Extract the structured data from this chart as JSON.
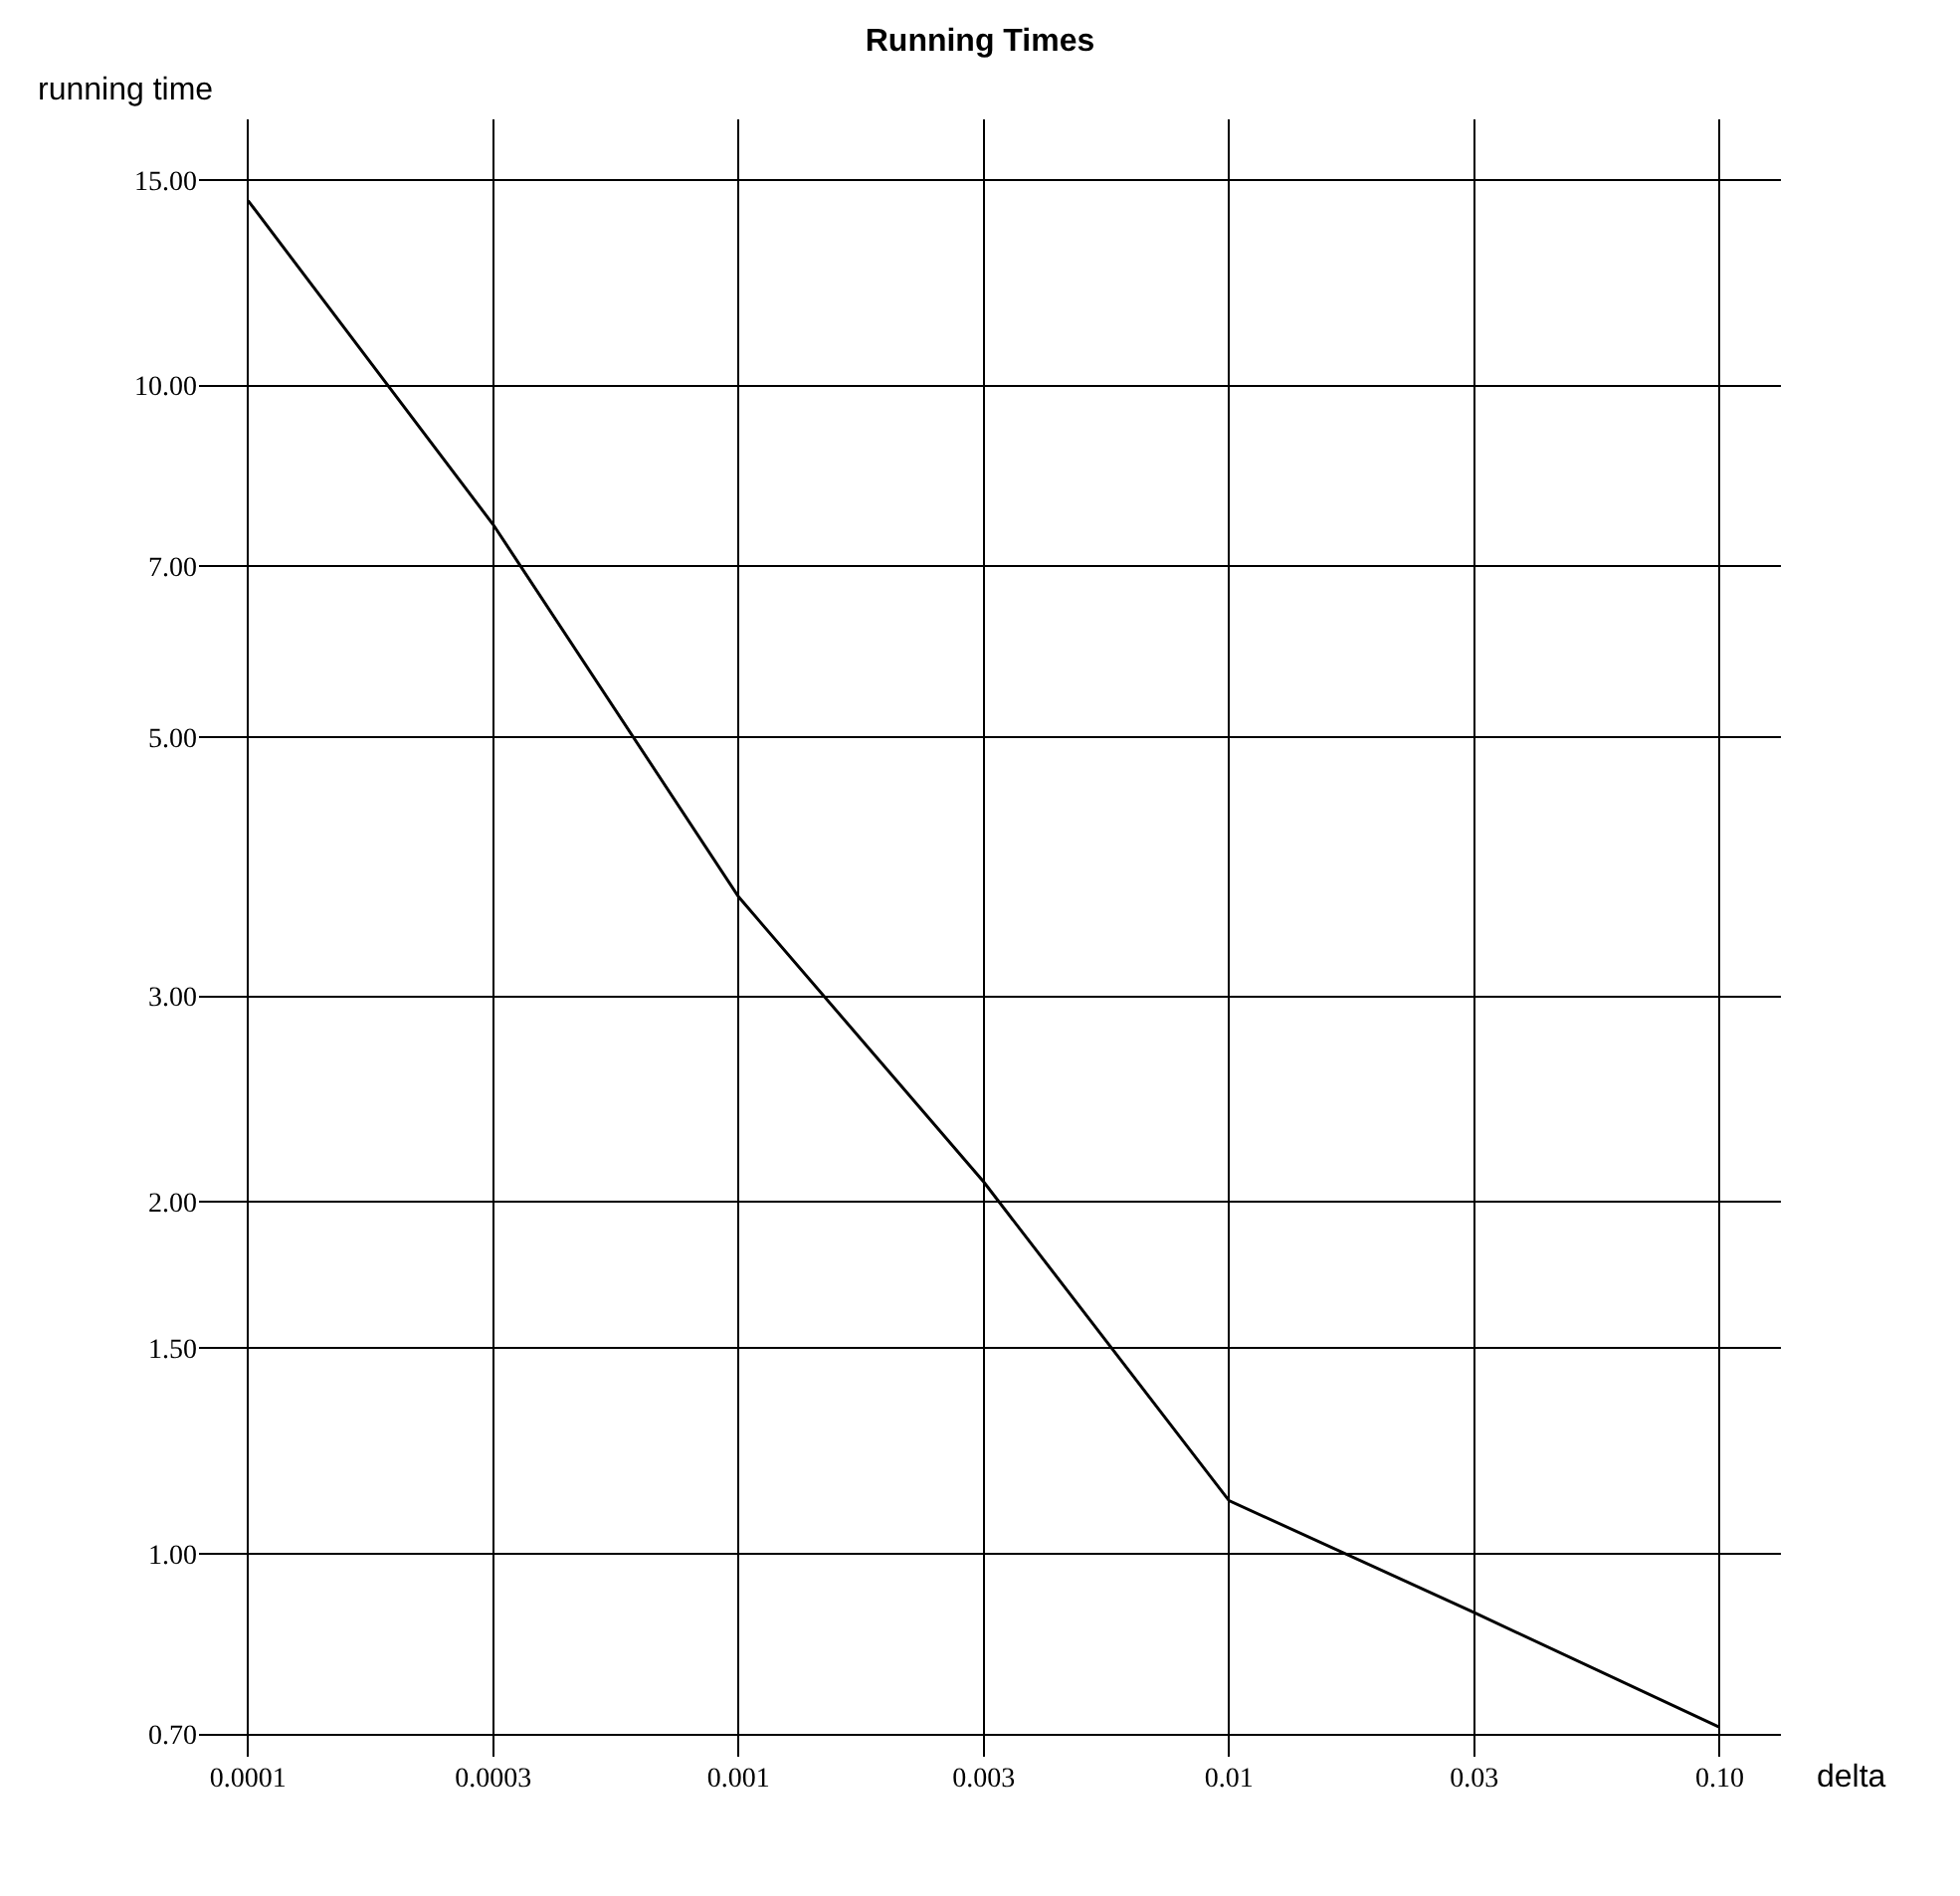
{
  "chart_data": {
    "type": "line",
    "title": "Running Times",
    "xlabel": "delta",
    "ylabel": "running time",
    "categories": [
      "0.0001",
      "0.0003",
      "0.001",
      "0.003",
      "0.01",
      "0.03",
      "0.10"
    ],
    "series": [
      {
        "color": "#000000",
        "values": [
          14.4,
          7.6,
          3.65,
          2.08,
          1.11,
          0.89,
          0.71
        ]
      }
    ],
    "log": "y",
    "ylim": [
      0.67,
      16.9
    ],
    "yticks": [
      {
        "value": 0.7,
        "label": "0.70"
      },
      {
        "value": 1,
        "label": "1.00"
      },
      {
        "value": 1.5,
        "label": "1.50"
      },
      {
        "value": 2,
        "label": "2.00"
      },
      {
        "value": 3,
        "label": "3.00"
      },
      {
        "value": 5,
        "label": "5.00"
      },
      {
        "value": 7,
        "label": "7.00"
      },
      {
        "value": 10,
        "label": "10.00"
      },
      {
        "value": 15,
        "label": "15.00"
      }
    ],
    "grid": true,
    "marker": "none",
    "line_style": "solid"
  }
}
